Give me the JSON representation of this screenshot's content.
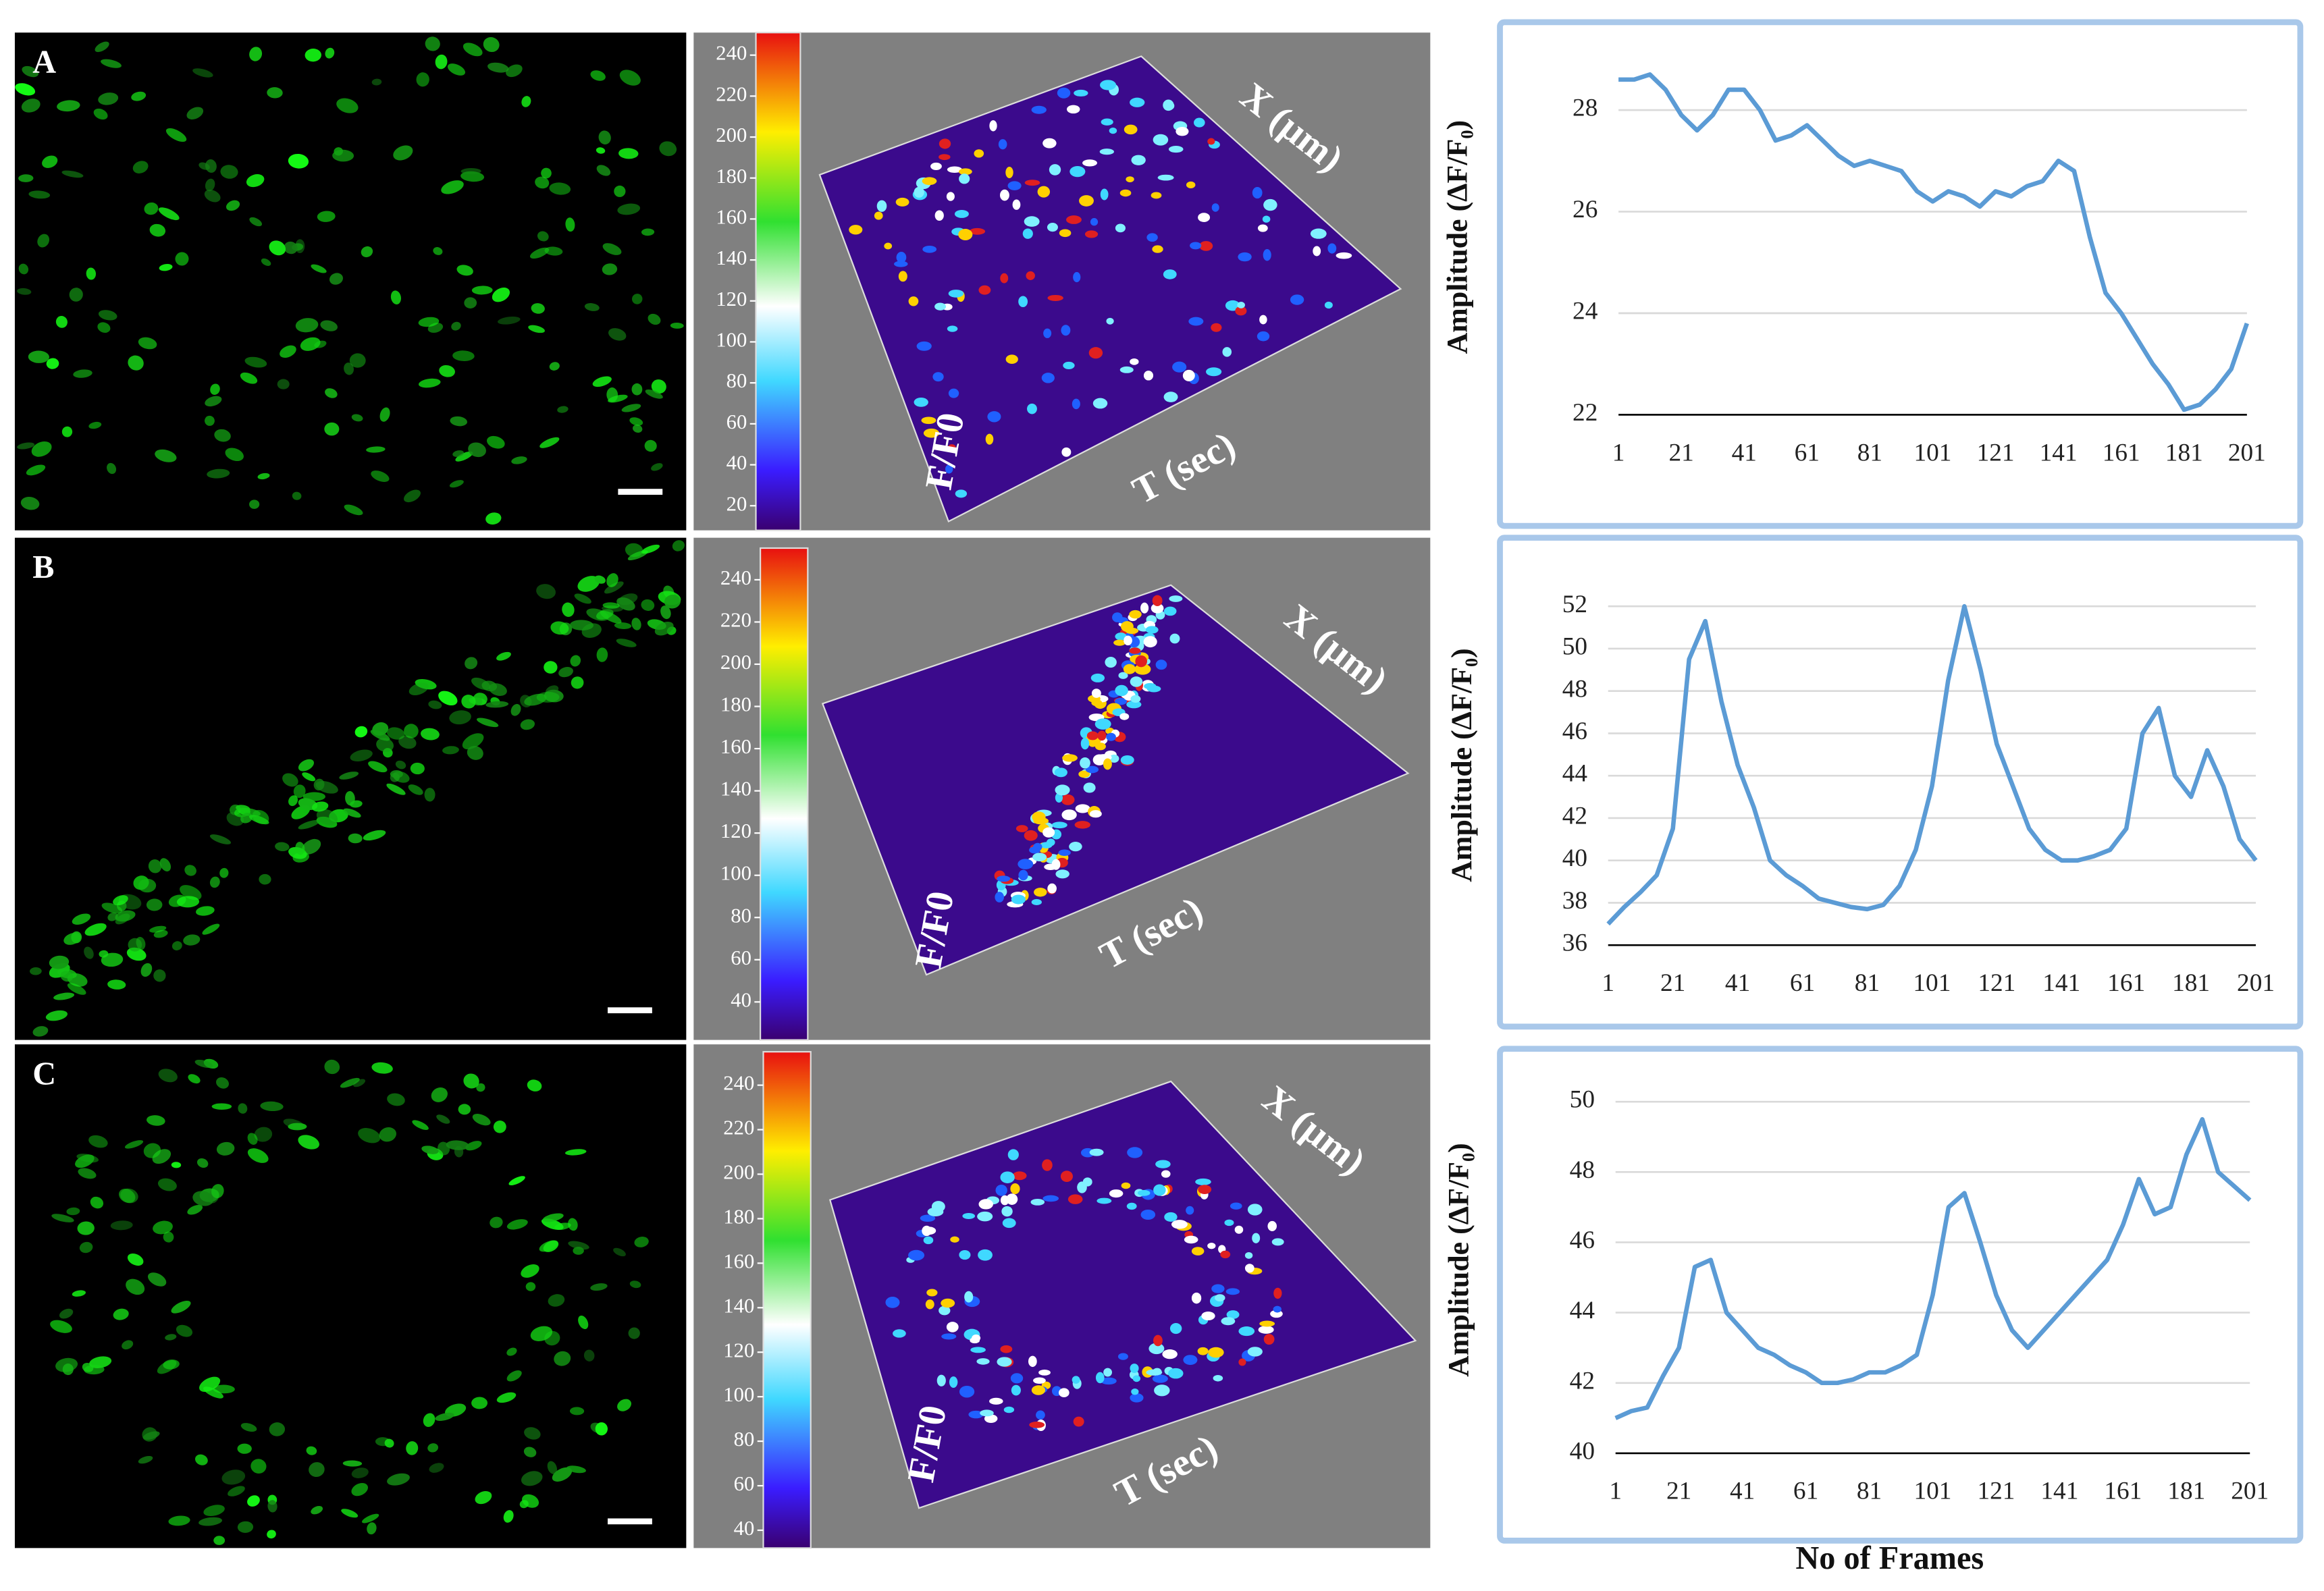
{
  "panels": [
    {
      "label": "A",
      "colorbar": {
        "ylim": [
          8,
          251
        ],
        "ticks": [
          20,
          40,
          60,
          80,
          100,
          120,
          140,
          160,
          180,
          200,
          220,
          240
        ]
      },
      "axis_labels": {
        "x": "X (µm)",
        "t": "T (sec)",
        "f": "F/F0"
      }
    },
    {
      "label": "B",
      "colorbar": {
        "ylim": [
          22,
          255
        ],
        "ticks": [
          40,
          60,
          80,
          100,
          120,
          140,
          160,
          180,
          200,
          220,
          240
        ]
      },
      "axis_labels": {
        "x": "X (µm)",
        "t": "T (sec)",
        "f": "F/F0"
      }
    },
    {
      "label": "C",
      "colorbar": {
        "ylim": [
          32,
          255
        ],
        "ticks": [
          40,
          60,
          80,
          100,
          120,
          140,
          160,
          180,
          200,
          220,
          240
        ]
      },
      "axis_labels": {
        "x": "X (µm)",
        "t": "T (sec)",
        "f": "F/F0"
      }
    }
  ],
  "chart_data": [
    {
      "type": "line",
      "ylabel": "Amplitude (ΔF/F₀)",
      "color": "#5b9bd5",
      "grid": true,
      "x": [
        1,
        6,
        11,
        16,
        21,
        26,
        31,
        36,
        41,
        46,
        51,
        56,
        61,
        66,
        71,
        76,
        81,
        86,
        91,
        96,
        101,
        106,
        111,
        116,
        121,
        126,
        131,
        136,
        141,
        146,
        151,
        156,
        161,
        166,
        171,
        176,
        181,
        186,
        191,
        196,
        201
      ],
      "values": [
        28.6,
        28.6,
        28.7,
        28.4,
        27.9,
        27.6,
        27.9,
        28.4,
        28.4,
        28.0,
        27.4,
        27.5,
        27.7,
        27.4,
        27.1,
        26.9,
        27.0,
        26.9,
        26.8,
        26.4,
        26.2,
        26.4,
        26.3,
        26.1,
        26.4,
        26.3,
        26.5,
        26.6,
        27.0,
        26.8,
        25.5,
        24.4,
        24.0,
        23.5,
        23.0,
        22.6,
        22.1,
        22.2,
        22.5,
        22.9,
        23.8
      ],
      "xlim": [
        1,
        201
      ],
      "xticks": [
        1,
        21,
        41,
        61,
        81,
        101,
        121,
        141,
        161,
        181,
        201
      ],
      "ylim": [
        22,
        29
      ],
      "yticks": [
        22,
        24,
        26,
        28
      ]
    },
    {
      "type": "line",
      "ylabel": "Amplitude (ΔF/F₀)",
      "color": "#5b9bd5",
      "grid": true,
      "x": [
        1,
        6,
        11,
        16,
        21,
        26,
        31,
        36,
        41,
        46,
        51,
        56,
        61,
        66,
        71,
        76,
        81,
        86,
        91,
        96,
        101,
        106,
        111,
        116,
        121,
        126,
        131,
        136,
        141,
        146,
        151,
        156,
        161,
        166,
        171,
        176,
        181,
        186,
        191,
        196,
        201
      ],
      "values": [
        37.0,
        37.8,
        38.5,
        39.3,
        41.5,
        49.5,
        51.3,
        47.5,
        44.5,
        42.5,
        40.0,
        39.3,
        38.8,
        38.2,
        38.0,
        37.8,
        37.7,
        37.9,
        38.8,
        40.5,
        43.5,
        48.5,
        52.0,
        49.0,
        45.5,
        43.5,
        41.5,
        40.5,
        40.0,
        40.0,
        40.2,
        40.5,
        41.5,
        46.0,
        47.2,
        44.0,
        43.0,
        45.2,
        43.5,
        41.0,
        40.0
      ],
      "xlim": [
        1,
        201
      ],
      "xticks": [
        1,
        21,
        41,
        61,
        81,
        101,
        121,
        141,
        161,
        181,
        201
      ],
      "ylim": [
        36,
        53
      ],
      "yticks": [
        36,
        38,
        40,
        42,
        44,
        46,
        48,
        50,
        52
      ]
    },
    {
      "type": "line",
      "ylabel": "Amplitude (ΔF/F₀)",
      "xlabel": "No of Frames",
      "color": "#5b9bd5",
      "grid": true,
      "x": [
        1,
        6,
        11,
        16,
        21,
        26,
        31,
        36,
        41,
        46,
        51,
        56,
        61,
        66,
        71,
        76,
        81,
        86,
        91,
        96,
        101,
        106,
        111,
        116,
        121,
        126,
        131,
        136,
        141,
        146,
        151,
        156,
        161,
        166,
        171,
        176,
        181,
        186,
        191,
        196,
        201
      ],
      "values": [
        41.0,
        41.2,
        41.3,
        42.2,
        43.0,
        45.3,
        45.5,
        44.0,
        43.5,
        43.0,
        42.8,
        42.5,
        42.3,
        42.0,
        42.0,
        42.1,
        42.3,
        42.3,
        42.5,
        42.8,
        44.5,
        47.0,
        47.4,
        46.0,
        44.5,
        43.5,
        43.0,
        43.5,
        44.0,
        44.5,
        45.0,
        45.5,
        46.5,
        47.8,
        46.8,
        47.0,
        48.5,
        49.5,
        48.0,
        47.6,
        47.2
      ],
      "xlim": [
        1,
        201
      ],
      "xticks": [
        1,
        21,
        41,
        61,
        81,
        101,
        121,
        141,
        161,
        181,
        201
      ],
      "ylim": [
        40,
        51
      ],
      "yticks": [
        40,
        42,
        44,
        46,
        48,
        50
      ]
    }
  ]
}
